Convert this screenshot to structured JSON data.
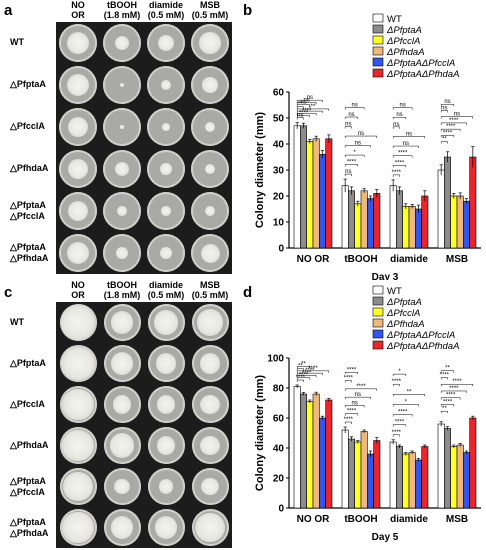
{
  "panels": {
    "a": {
      "label": "a"
    },
    "b": {
      "label": "b"
    },
    "c": {
      "label": "c"
    },
    "d": {
      "label": "d"
    }
  },
  "photo_headers": [
    {
      "line1": "NO",
      "line2": "OR"
    },
    {
      "line1": "tBOOH",
      "line2": "(1.8 mM)"
    },
    {
      "line1": "diamide",
      "line2": "(0.5 mM)"
    },
    {
      "line1": "MSB",
      "line2": "(0.5 mM)"
    }
  ],
  "photo_rows": [
    {
      "line1": "WT",
      "line2": ""
    },
    {
      "line1": "△PfptaA",
      "line2": ""
    },
    {
      "line1": "△PfcclA",
      "line2": ""
    },
    {
      "line1": "△PfhdaA",
      "line2": ""
    },
    {
      "line1": "△PfptaA",
      "line2": "△PfcclA"
    },
    {
      "line1": "△PfptaA",
      "line2": "△PfhdaA"
    }
  ],
  "colony_fraction_day3": [
    [
      0.6,
      0.38,
      0.44,
      0.56
    ],
    [
      0.6,
      0.12,
      0.28,
      0.4
    ],
    [
      0.55,
      0.08,
      0.22,
      0.26
    ],
    [
      0.55,
      0.38,
      0.3,
      0.26
    ],
    [
      0.55,
      0.25,
      0.24,
      0.26
    ],
    [
      0.6,
      0.3,
      0.3,
      0.5
    ]
  ],
  "colony_fraction_day5": [
    [
      0.92,
      0.6,
      0.66,
      0.72
    ],
    [
      0.9,
      0.62,
      0.56,
      0.55
    ],
    [
      0.85,
      0.5,
      0.5,
      0.52
    ],
    [
      0.85,
      0.66,
      0.5,
      0.52
    ],
    [
      0.8,
      0.42,
      0.4,
      0.46
    ],
    [
      0.86,
      0.62,
      0.6,
      0.8
    ]
  ],
  "colors": {
    "series": [
      "#ffffff",
      "#8c8c8c",
      "#ffff26",
      "#f0b97c",
      "#3355ee",
      "#e8262c"
    ],
    "plate": "#a9a9a5",
    "plate_rim": "#cfcfcb",
    "colony": "#e8e8e2"
  },
  "chart_data": [
    {
      "type": "bar",
      "panel": "b",
      "xlabel": "Day 3",
      "ylabel": "Colony diameter (mm)",
      "ylim": [
        0,
        60
      ],
      "yticks": [
        0,
        10,
        20,
        30,
        40,
        50,
        60
      ],
      "categories": [
        "NO OR",
        "tBOOH",
        "diamide",
        "MSB"
      ],
      "legend_position": "top-right",
      "series": [
        {
          "name": "WT",
          "values": [
            47,
            24,
            24,
            30
          ],
          "errors": [
            1.2,
            2.5,
            2.2,
            2.0
          ]
        },
        {
          "name": "ΔPfptaA",
          "values": [
            47,
            22,
            22,
            35
          ],
          "errors": [
            1.0,
            1.5,
            1.5,
            2.0
          ]
        },
        {
          "name": "ΔPfcclA",
          "values": [
            41,
            17,
            16,
            20
          ],
          "errors": [
            0.8,
            1.0,
            1.0,
            1.0
          ]
        },
        {
          "name": "ΔPfhdaA",
          "values": [
            42,
            22,
            16,
            20
          ],
          "errors": [
            1.0,
            0.8,
            0.8,
            1.2
          ]
        },
        {
          "name": "ΔPfptaAΔPfcclA",
          "values": [
            36,
            19,
            15,
            18
          ],
          "errors": [
            1.5,
            1.0,
            1.5,
            1.0
          ]
        },
        {
          "name": "ΔPfptaAΔPfhdaA",
          "values": [
            42,
            21,
            20,
            35
          ],
          "errors": [
            1.5,
            1.5,
            2.0,
            4.0
          ]
        }
      ],
      "significance": [
        {
          "group": 0,
          "labels": [
            "ns",
            "****",
            "****",
            "*",
            "**",
            "**",
            "ns",
            "ns",
            "ns"
          ]
        },
        {
          "group": 1,
          "labels": [
            "ns",
            "****",
            "*",
            "ns",
            "ns",
            "ns",
            "ns",
            "ns"
          ]
        },
        {
          "group": 2,
          "labels": [
            "****",
            "****",
            "****",
            "ns",
            "ns",
            "ns",
            "ns",
            "ns"
          ]
        },
        {
          "group": 3,
          "labels": [
            "**",
            "****",
            "****",
            "****",
            "ns",
            "ns",
            "ns"
          ]
        }
      ]
    },
    {
      "type": "bar",
      "panel": "d",
      "xlabel": "Day 5",
      "ylabel": "Colony diameter (mm)",
      "ylim": [
        0,
        100
      ],
      "yticks": [
        0,
        20,
        40,
        60,
        80,
        100
      ],
      "categories": [
        "NO OR",
        "tBOOH",
        "diamide",
        "MSB"
      ],
      "legend_position": "top-right",
      "series": [
        {
          "name": "WT",
          "values": [
            81,
            52,
            44,
            56
          ],
          "errors": [
            1.0,
            2.0,
            1.5,
            1.5
          ]
        },
        {
          "name": "ΔPfptaA",
          "values": [
            76,
            46,
            41,
            53
          ],
          "errors": [
            1.0,
            1.5,
            1.0,
            1.2
          ]
        },
        {
          "name": "ΔPfcclA",
          "values": [
            71,
            44,
            36,
            41
          ],
          "errors": [
            1.0,
            1.0,
            1.0,
            1.0
          ]
        },
        {
          "name": "ΔPfhdaA",
          "values": [
            76,
            51,
            37,
            42
          ],
          "errors": [
            1.2,
            1.0,
            1.0,
            1.0
          ]
        },
        {
          "name": "ΔPfptaAΔPfcclA",
          "values": [
            60,
            36,
            32,
            37
          ],
          "errors": [
            1.2,
            2.0,
            1.0,
            1.0
          ]
        },
        {
          "name": "ΔPfptaAΔPfhdaA",
          "values": [
            72,
            45,
            41,
            60
          ],
          "errors": [
            1.0,
            2.0,
            1.0,
            1.2
          ]
        }
      ],
      "significance": [
        {
          "group": 0,
          "labels": [
            "****",
            "****",
            "****",
            "****",
            "****",
            "**",
            "**"
          ]
        },
        {
          "group": 1,
          "labels": [
            "****",
            "****",
            "ns",
            "ns",
            "****",
            "****",
            "****"
          ]
        },
        {
          "group": 2,
          "labels": [
            "****",
            "****",
            "****",
            "*",
            "**",
            "****",
            "*"
          ]
        },
        {
          "group": 3,
          "labels": [
            "**",
            "****",
            "****",
            "****",
            "****",
            "****",
            "**"
          ]
        }
      ]
    }
  ]
}
